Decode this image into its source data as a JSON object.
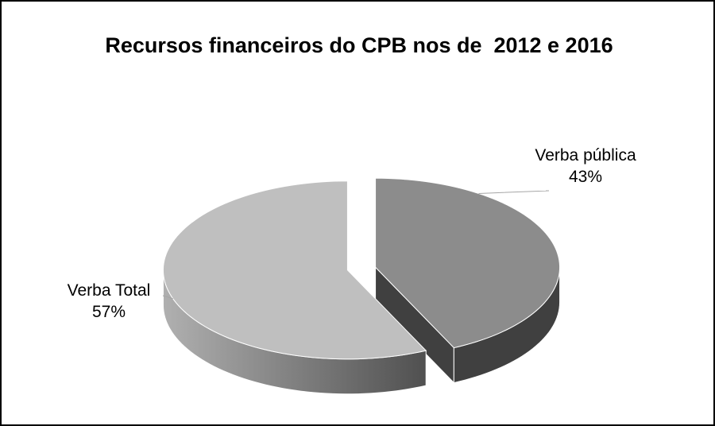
{
  "chart_data": {
    "type": "pie",
    "title": "Recursos financeiros do CPB nos de  2012 e 2016",
    "categories": [
      "Verba pública",
      "Verba Total"
    ],
    "values": [
      43,
      57
    ],
    "value_labels": [
      "43%",
      "57%"
    ],
    "colors": [
      "#8c8c8c",
      "#bfbfbf"
    ],
    "side_colors": [
      "#404040",
      "#7a7a7a"
    ]
  }
}
